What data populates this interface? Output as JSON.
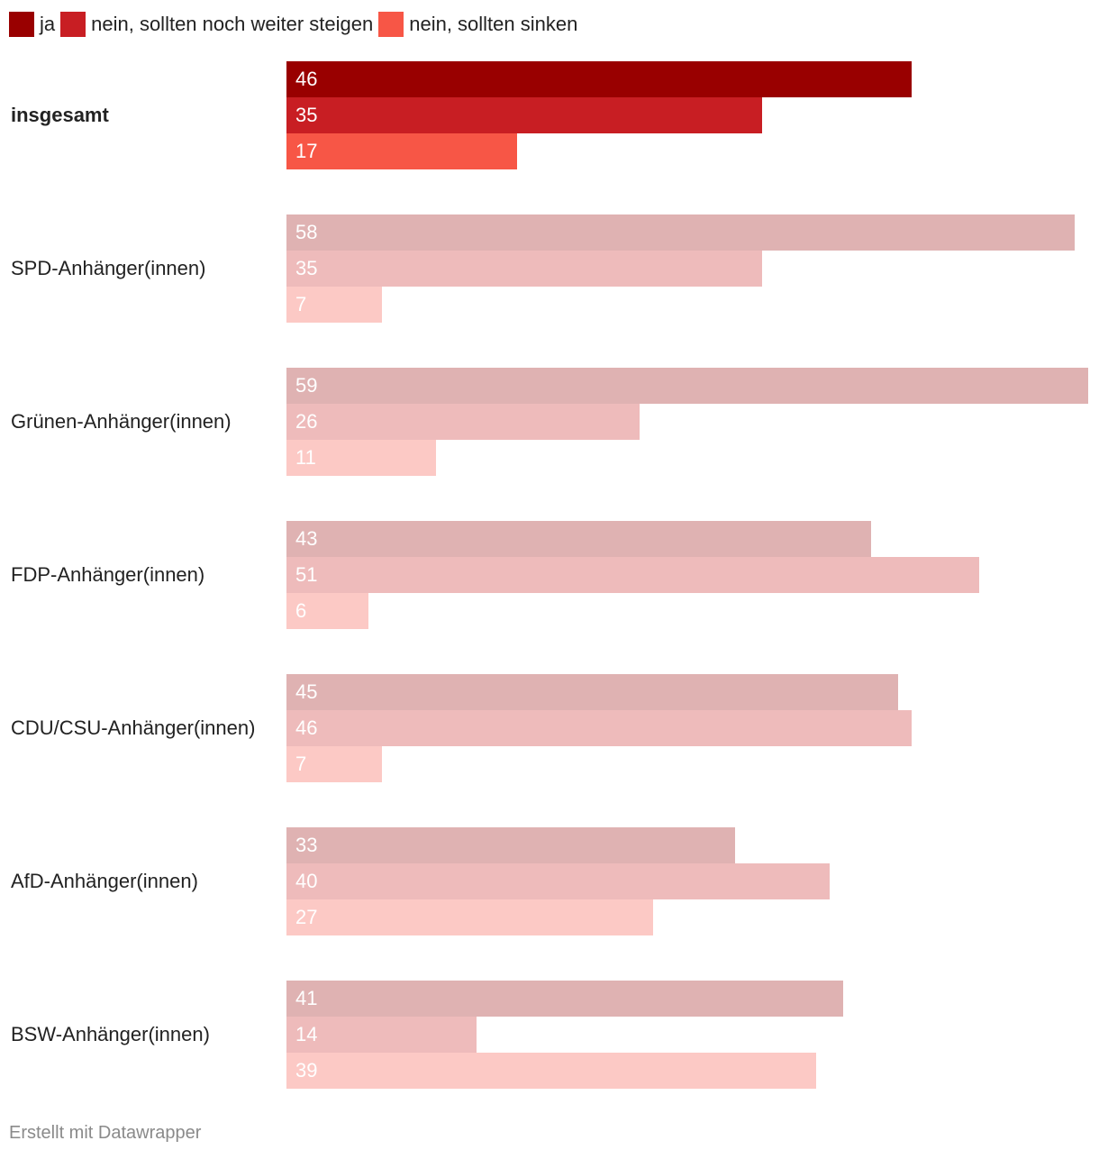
{
  "chart_data": {
    "type": "bar",
    "orientation": "horizontal",
    "legend_position": "top-left",
    "categories": [
      "insgesamt",
      "SPD-Anhänger(innen)",
      "Grünen-Anhänger(innen)",
      "FDP-Anhänger(innen)",
      "CDU/CSU-Anhänger(innen)",
      "AfD-Anhänger(innen)",
      "BSW-Anhänger(innen)"
    ],
    "highlighted_category": "insgesamt",
    "series": [
      {
        "name": "ja",
        "values": [
          46,
          58,
          59,
          43,
          45,
          33,
          41
        ]
      },
      {
        "name": "nein, sollten noch weiter steigen",
        "values": [
          35,
          35,
          26,
          51,
          46,
          40,
          14
        ]
      },
      {
        "name": "nein, sollten sinken",
        "values": [
          17,
          7,
          11,
          6,
          7,
          27,
          39
        ]
      }
    ],
    "colors": {
      "highlight": [
        "#990000",
        "#c81e23",
        "#f75646"
      ],
      "muted": [
        "#dfb2b2",
        "#eebbbb",
        "#fcc9c5"
      ]
    },
    "xlim": [
      0,
      59
    ],
    "grid": false,
    "value_labels": true
  },
  "footer": {
    "credit": "Erstellt mit Datawrapper"
  }
}
